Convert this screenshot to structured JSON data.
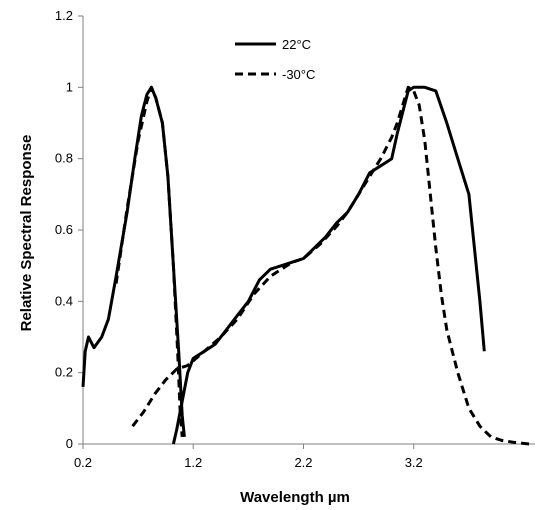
{
  "chart_data": {
    "type": "line",
    "title": "",
    "xlabel": "Wavelength µm",
    "ylabel": "Relative Spectral Response",
    "xlim": [
      0.2,
      4.3
    ],
    "ylim": [
      0,
      1.2
    ],
    "x_ticks": [
      0.2,
      1.2,
      2.2,
      3.2
    ],
    "x_tick_labels": [
      "0.2",
      "1.2",
      "2.2",
      "3.2"
    ],
    "y_ticks": [
      0,
      0.2,
      0.4,
      0.6,
      0.8,
      1,
      1.2
    ],
    "y_tick_labels": [
      "0",
      "0.2",
      "0.4",
      "0.6",
      "0.8",
      "1",
      "1.2"
    ],
    "grid": false,
    "legend_position": "top-center",
    "series": [
      {
        "name": "22°C",
        "style": "solid",
        "color": "#000000",
        "segments": [
          [
            [
              0.2,
              0.16
            ],
            [
              0.22,
              0.26
            ],
            [
              0.25,
              0.3
            ],
            [
              0.3,
              0.27
            ],
            [
              0.37,
              0.3
            ],
            [
              0.43,
              0.35
            ],
            [
              0.5,
              0.47
            ],
            [
              0.6,
              0.65
            ],
            [
              0.67,
              0.8
            ],
            [
              0.73,
              0.92
            ],
            [
              0.78,
              0.98
            ],
            [
              0.82,
              1.0
            ],
            [
              0.86,
              0.97
            ],
            [
              0.92,
              0.9
            ],
            [
              0.97,
              0.75
            ],
            [
              1.02,
              0.5
            ],
            [
              1.07,
              0.25
            ],
            [
              1.1,
              0.08
            ],
            [
              1.12,
              0.02
            ]
          ],
          [
            [
              1.02,
              0.0
            ],
            [
              1.05,
              0.04
            ],
            [
              1.1,
              0.12
            ],
            [
              1.15,
              0.2
            ],
            [
              1.2,
              0.24
            ],
            [
              1.3,
              0.26
            ],
            [
              1.4,
              0.28
            ],
            [
              1.5,
              0.32
            ],
            [
              1.6,
              0.36
            ],
            [
              1.7,
              0.4
            ],
            [
              1.8,
              0.46
            ],
            [
              1.9,
              0.49
            ],
            [
              2.0,
              0.5
            ],
            [
              2.1,
              0.51
            ],
            [
              2.2,
              0.52
            ],
            [
              2.3,
              0.55
            ],
            [
              2.4,
              0.58
            ],
            [
              2.5,
              0.62
            ],
            [
              2.6,
              0.65
            ],
            [
              2.7,
              0.7
            ],
            [
              2.8,
              0.76
            ],
            [
              2.9,
              0.78
            ],
            [
              3.0,
              0.8
            ],
            [
              3.05,
              0.87
            ],
            [
              3.1,
              0.93
            ],
            [
              3.15,
              0.99
            ],
            [
              3.2,
              1.0
            ],
            [
              3.3,
              1.0
            ],
            [
              3.4,
              0.99
            ],
            [
              3.5,
              0.9
            ],
            [
              3.6,
              0.8
            ],
            [
              3.7,
              0.7
            ],
            [
              3.75,
              0.55
            ],
            [
              3.8,
              0.4
            ],
            [
              3.84,
              0.26
            ]
          ]
        ]
      },
      {
        "name": "-30°C",
        "style": "dashed",
        "color": "#000000",
        "segments": [
          [
            [
              0.5,
              0.45
            ],
            [
              0.6,
              0.66
            ],
            [
              0.7,
              0.85
            ],
            [
              0.78,
              0.96
            ],
            [
              0.82,
              1.0
            ],
            [
              0.86,
              0.97
            ],
            [
              0.92,
              0.9
            ],
            [
              0.97,
              0.75
            ],
            [
              1.02,
              0.5
            ],
            [
              1.06,
              0.25
            ],
            [
              1.08,
              0.1
            ],
            [
              1.1,
              0.02
            ]
          ],
          [
            [
              0.65,
              0.05
            ],
            [
              0.75,
              0.09
            ],
            [
              0.85,
              0.14
            ],
            [
              0.95,
              0.18
            ],
            [
              1.05,
              0.21
            ],
            [
              1.15,
              0.22
            ],
            [
              1.3,
              0.26
            ],
            [
              1.45,
              0.3
            ],
            [
              1.6,
              0.35
            ],
            [
              1.75,
              0.42
            ],
            [
              1.9,
              0.47
            ],
            [
              2.0,
              0.49
            ],
            [
              2.1,
              0.51
            ],
            [
              2.2,
              0.52
            ],
            [
              2.35,
              0.56
            ],
            [
              2.5,
              0.61
            ],
            [
              2.6,
              0.65
            ],
            [
              2.7,
              0.7
            ],
            [
              2.8,
              0.75
            ],
            [
              2.9,
              0.8
            ],
            [
              3.0,
              0.86
            ],
            [
              3.05,
              0.9
            ],
            [
              3.1,
              0.95
            ],
            [
              3.15,
              1.0
            ],
            [
              3.2,
              0.99
            ],
            [
              3.25,
              0.95
            ],
            [
              3.3,
              0.85
            ],
            [
              3.35,
              0.7
            ],
            [
              3.4,
              0.55
            ],
            [
              3.45,
              0.42
            ],
            [
              3.5,
              0.32
            ],
            [
              3.6,
              0.2
            ],
            [
              3.7,
              0.1
            ],
            [
              3.8,
              0.05
            ],
            [
              3.9,
              0.02
            ],
            [
              4.0,
              0.01
            ],
            [
              4.1,
              0.005
            ],
            [
              4.25,
              0.0
            ]
          ]
        ]
      }
    ]
  }
}
